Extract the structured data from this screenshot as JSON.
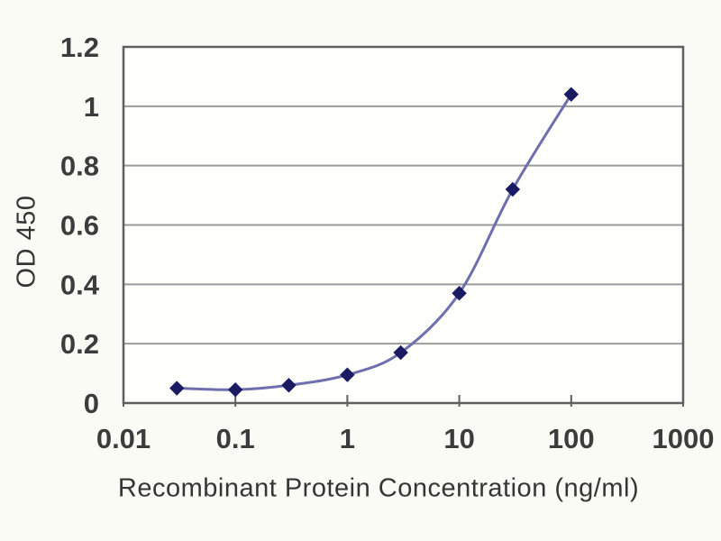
{
  "chart_data": {
    "type": "line",
    "title": "",
    "xlabel": "Recombinant Protein Concentration (ng/ml)",
    "ylabel": "OD 450",
    "x_scale": "log",
    "xlim": [
      0.01,
      1000
    ],
    "ylim": [
      0,
      1.2
    ],
    "x_ticks": [
      0.01,
      0.1,
      1,
      10,
      100,
      1000
    ],
    "x_tick_labels": [
      "0.01",
      "0.1",
      "1",
      "10",
      "100",
      "1000"
    ],
    "y_ticks": [
      0,
      0.2,
      0.4,
      0.6,
      0.8,
      1,
      1.2
    ],
    "y_tick_labels": [
      "0",
      "0.2",
      "0.4",
      "0.6",
      "0.8",
      "1",
      "1.2"
    ],
    "grid": "horizontal-only",
    "legend": "none",
    "series": [
      {
        "name": "OD 450 standard curve",
        "marker": "diamond",
        "x": [
          0.03,
          0.1,
          0.3,
          1,
          3,
          10,
          30,
          100
        ],
        "y": [
          0.05,
          0.045,
          0.06,
          0.095,
          0.17,
          0.37,
          0.72,
          1.04
        ]
      }
    ]
  },
  "colors": {
    "background": "#fbfbf6",
    "plot_background": "#fefefb",
    "gridline": "#9b9b9b",
    "frame": "#5f5f5f",
    "tick_text": "#3c3c3c",
    "series_line": "#6f6fae",
    "marker_fill": "#1b1b63"
  }
}
